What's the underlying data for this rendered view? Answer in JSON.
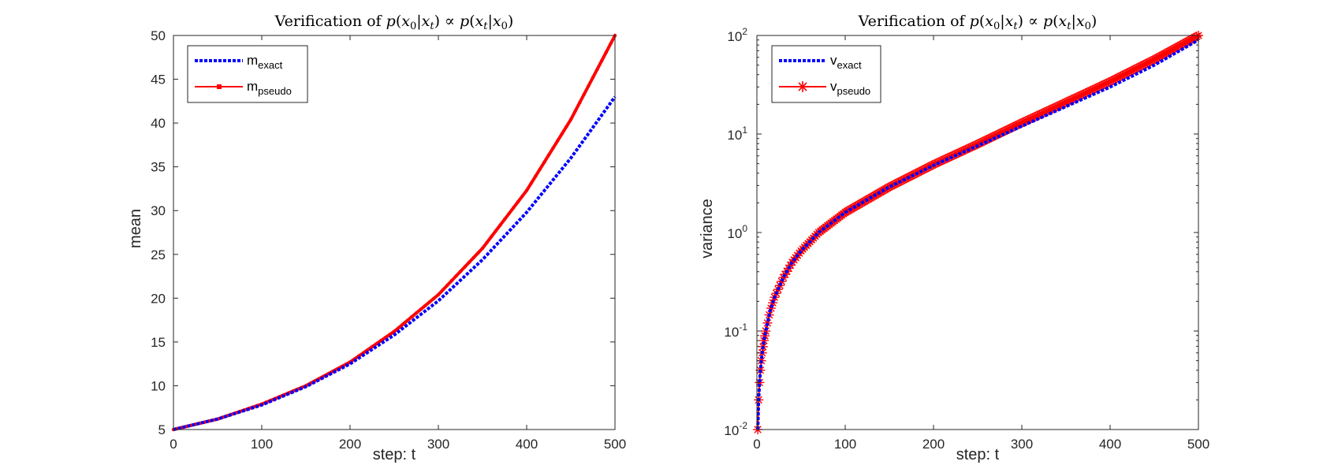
{
  "chart_data": [
    {
      "type": "line",
      "title": "Verification of p(x0|xt) ∝ p(xt|x0)",
      "title_parts": {
        "prefix": "Verification of ",
        "p": "p",
        "x": "x",
        "sub0": "0",
        "subt": "t",
        "propto": "∝"
      },
      "xlabel": "step: t",
      "ylabel": "mean",
      "xlim": [
        0,
        500
      ],
      "ylim": [
        5,
        50
      ],
      "yscale": "linear",
      "xticks": [
        0,
        100,
        200,
        300,
        400,
        500
      ],
      "yticks": [
        5,
        10,
        15,
        20,
        25,
        30,
        35,
        40,
        45,
        50
      ],
      "grid": false,
      "legend_position": "top-left",
      "series": [
        {
          "name": "m_exact",
          "legend_base": "m",
          "legend_sub": "exact",
          "color": "#0000ff",
          "style": "dotted",
          "x": [
            0,
            50,
            100,
            150,
            200,
            250,
            300,
            350,
            400,
            450,
            500
          ],
          "y": [
            5,
            6.2,
            7.8,
            9.9,
            12.5,
            15.8,
            19.7,
            24.4,
            29.8,
            36.0,
            43.0
          ]
        },
        {
          "name": "m_pseudo",
          "legend_base": "m",
          "legend_sub": "pseudo",
          "color": "#ff0000",
          "style": "solid",
          "marker": "point",
          "x": [
            0,
            50,
            100,
            150,
            200,
            250,
            300,
            350,
            400,
            450,
            500
          ],
          "y": [
            5,
            6.2,
            7.9,
            10.0,
            12.7,
            16.2,
            20.4,
            25.7,
            32.3,
            40.4,
            50.0
          ]
        }
      ]
    },
    {
      "type": "line",
      "title": "Verification of p(x0|xt) ∝ p(xt|x0)",
      "title_parts": {
        "prefix": "Verification of ",
        "p": "p",
        "x": "x",
        "sub0": "0",
        "subt": "t",
        "propto": "∝"
      },
      "xlabel": "step: t",
      "ylabel": "variance",
      "xlim": [
        0,
        500
      ],
      "ylim": [
        0.01,
        100
      ],
      "yscale": "log",
      "xticks": [
        0,
        100,
        200,
        300,
        400,
        500
      ],
      "yticks": [
        {
          "base": "10",
          "exp": "-2",
          "value": 0.01
        },
        {
          "base": "10",
          "exp": "-1",
          "value": 0.1
        },
        {
          "base": "10",
          "exp": "0",
          "value": 1
        },
        {
          "base": "10",
          "exp": "1",
          "value": 10
        },
        {
          "base": "10",
          "exp": "2",
          "value": 100
        }
      ],
      "grid": false,
      "legend_position": "top-left",
      "series": [
        {
          "name": "v_exact",
          "legend_base": "v",
          "legend_sub": "exact",
          "color": "#0000ff",
          "style": "dotted",
          "x": [
            1,
            2,
            3,
            4,
            5,
            6,
            8,
            10,
            15,
            20,
            30,
            40,
            50,
            70,
            100,
            150,
            200,
            250,
            300,
            350,
            400,
            450,
            500
          ],
          "y": [
            0.01,
            0.02,
            0.03,
            0.04,
            0.05,
            0.06,
            0.08,
            0.1,
            0.16,
            0.22,
            0.35,
            0.5,
            0.65,
            1.0,
            1.6,
            2.9,
            4.8,
            7.6,
            12,
            19,
            30,
            50,
            90
          ]
        },
        {
          "name": "v_pseudo",
          "legend_base": "v",
          "legend_sub": "pseudo",
          "color": "#ff0000",
          "style": "solid",
          "marker": "asterisk",
          "x": [
            1,
            2,
            3,
            4,
            5,
            6,
            8,
            10,
            15,
            20,
            30,
            40,
            50,
            70,
            100,
            150,
            200,
            250,
            300,
            350,
            400,
            450,
            500
          ],
          "y": [
            0.01,
            0.02,
            0.03,
            0.04,
            0.05,
            0.06,
            0.08,
            0.1,
            0.16,
            0.22,
            0.35,
            0.5,
            0.65,
            1.0,
            1.6,
            2.9,
            4.9,
            7.9,
            13,
            21,
            34,
            57,
            100
          ]
        }
      ]
    }
  ]
}
